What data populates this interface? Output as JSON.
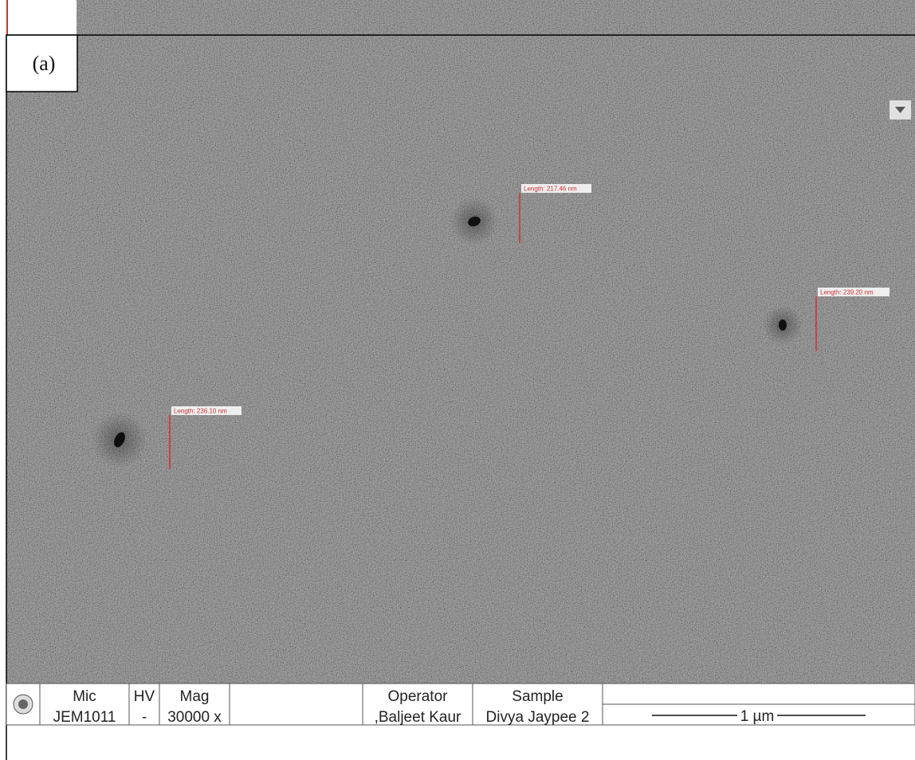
{
  "panel_label": "(a)",
  "measurements": [
    {
      "label": "Length: 217.46 nm"
    },
    {
      "label": "Length: 239.20 nm"
    },
    {
      "label": "Length: 236.10 nm"
    }
  ],
  "info_bar": {
    "columns": [
      {
        "header": "Mic",
        "value": "JEM1011"
      },
      {
        "header": "HV",
        "value": "-"
      },
      {
        "header": "Mag",
        "value": "30000 x"
      },
      {
        "header": "Operator",
        "value": ",Baljeet Kaur"
      },
      {
        "header": "Sample",
        "value": "Divya Jaypee 2"
      }
    ],
    "scale_bar": "1 µm"
  }
}
